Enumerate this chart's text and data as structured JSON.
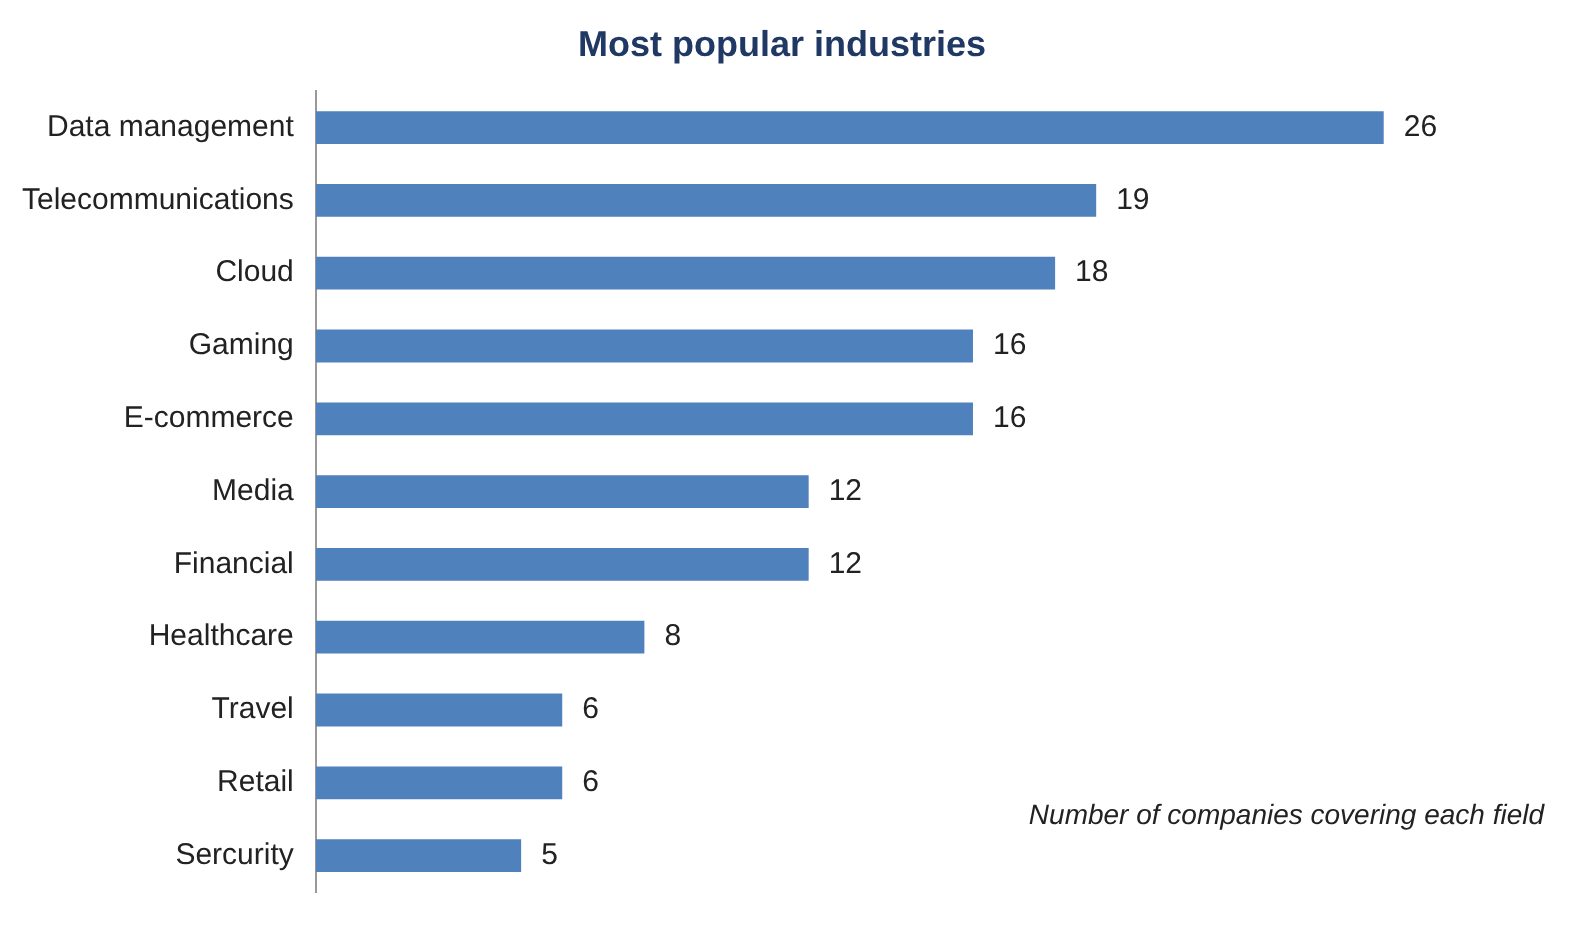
{
  "chart_data": {
    "type": "bar",
    "orientation": "horizontal",
    "title": "Most popular industries",
    "categories": [
      "Data management",
      "Telecommunications",
      "Cloud",
      "Gaming",
      "E-commerce",
      "Media",
      "Financial",
      "Healthcare",
      "Travel",
      "Retail",
      "Sercurity"
    ],
    "values": [
      26,
      19,
      18,
      16,
      16,
      12,
      12,
      8,
      6,
      6,
      5
    ],
    "color": "#4f81bd",
    "data_labels": true,
    "legend": false,
    "annotations": [
      "Number of companies covering each field"
    ]
  }
}
